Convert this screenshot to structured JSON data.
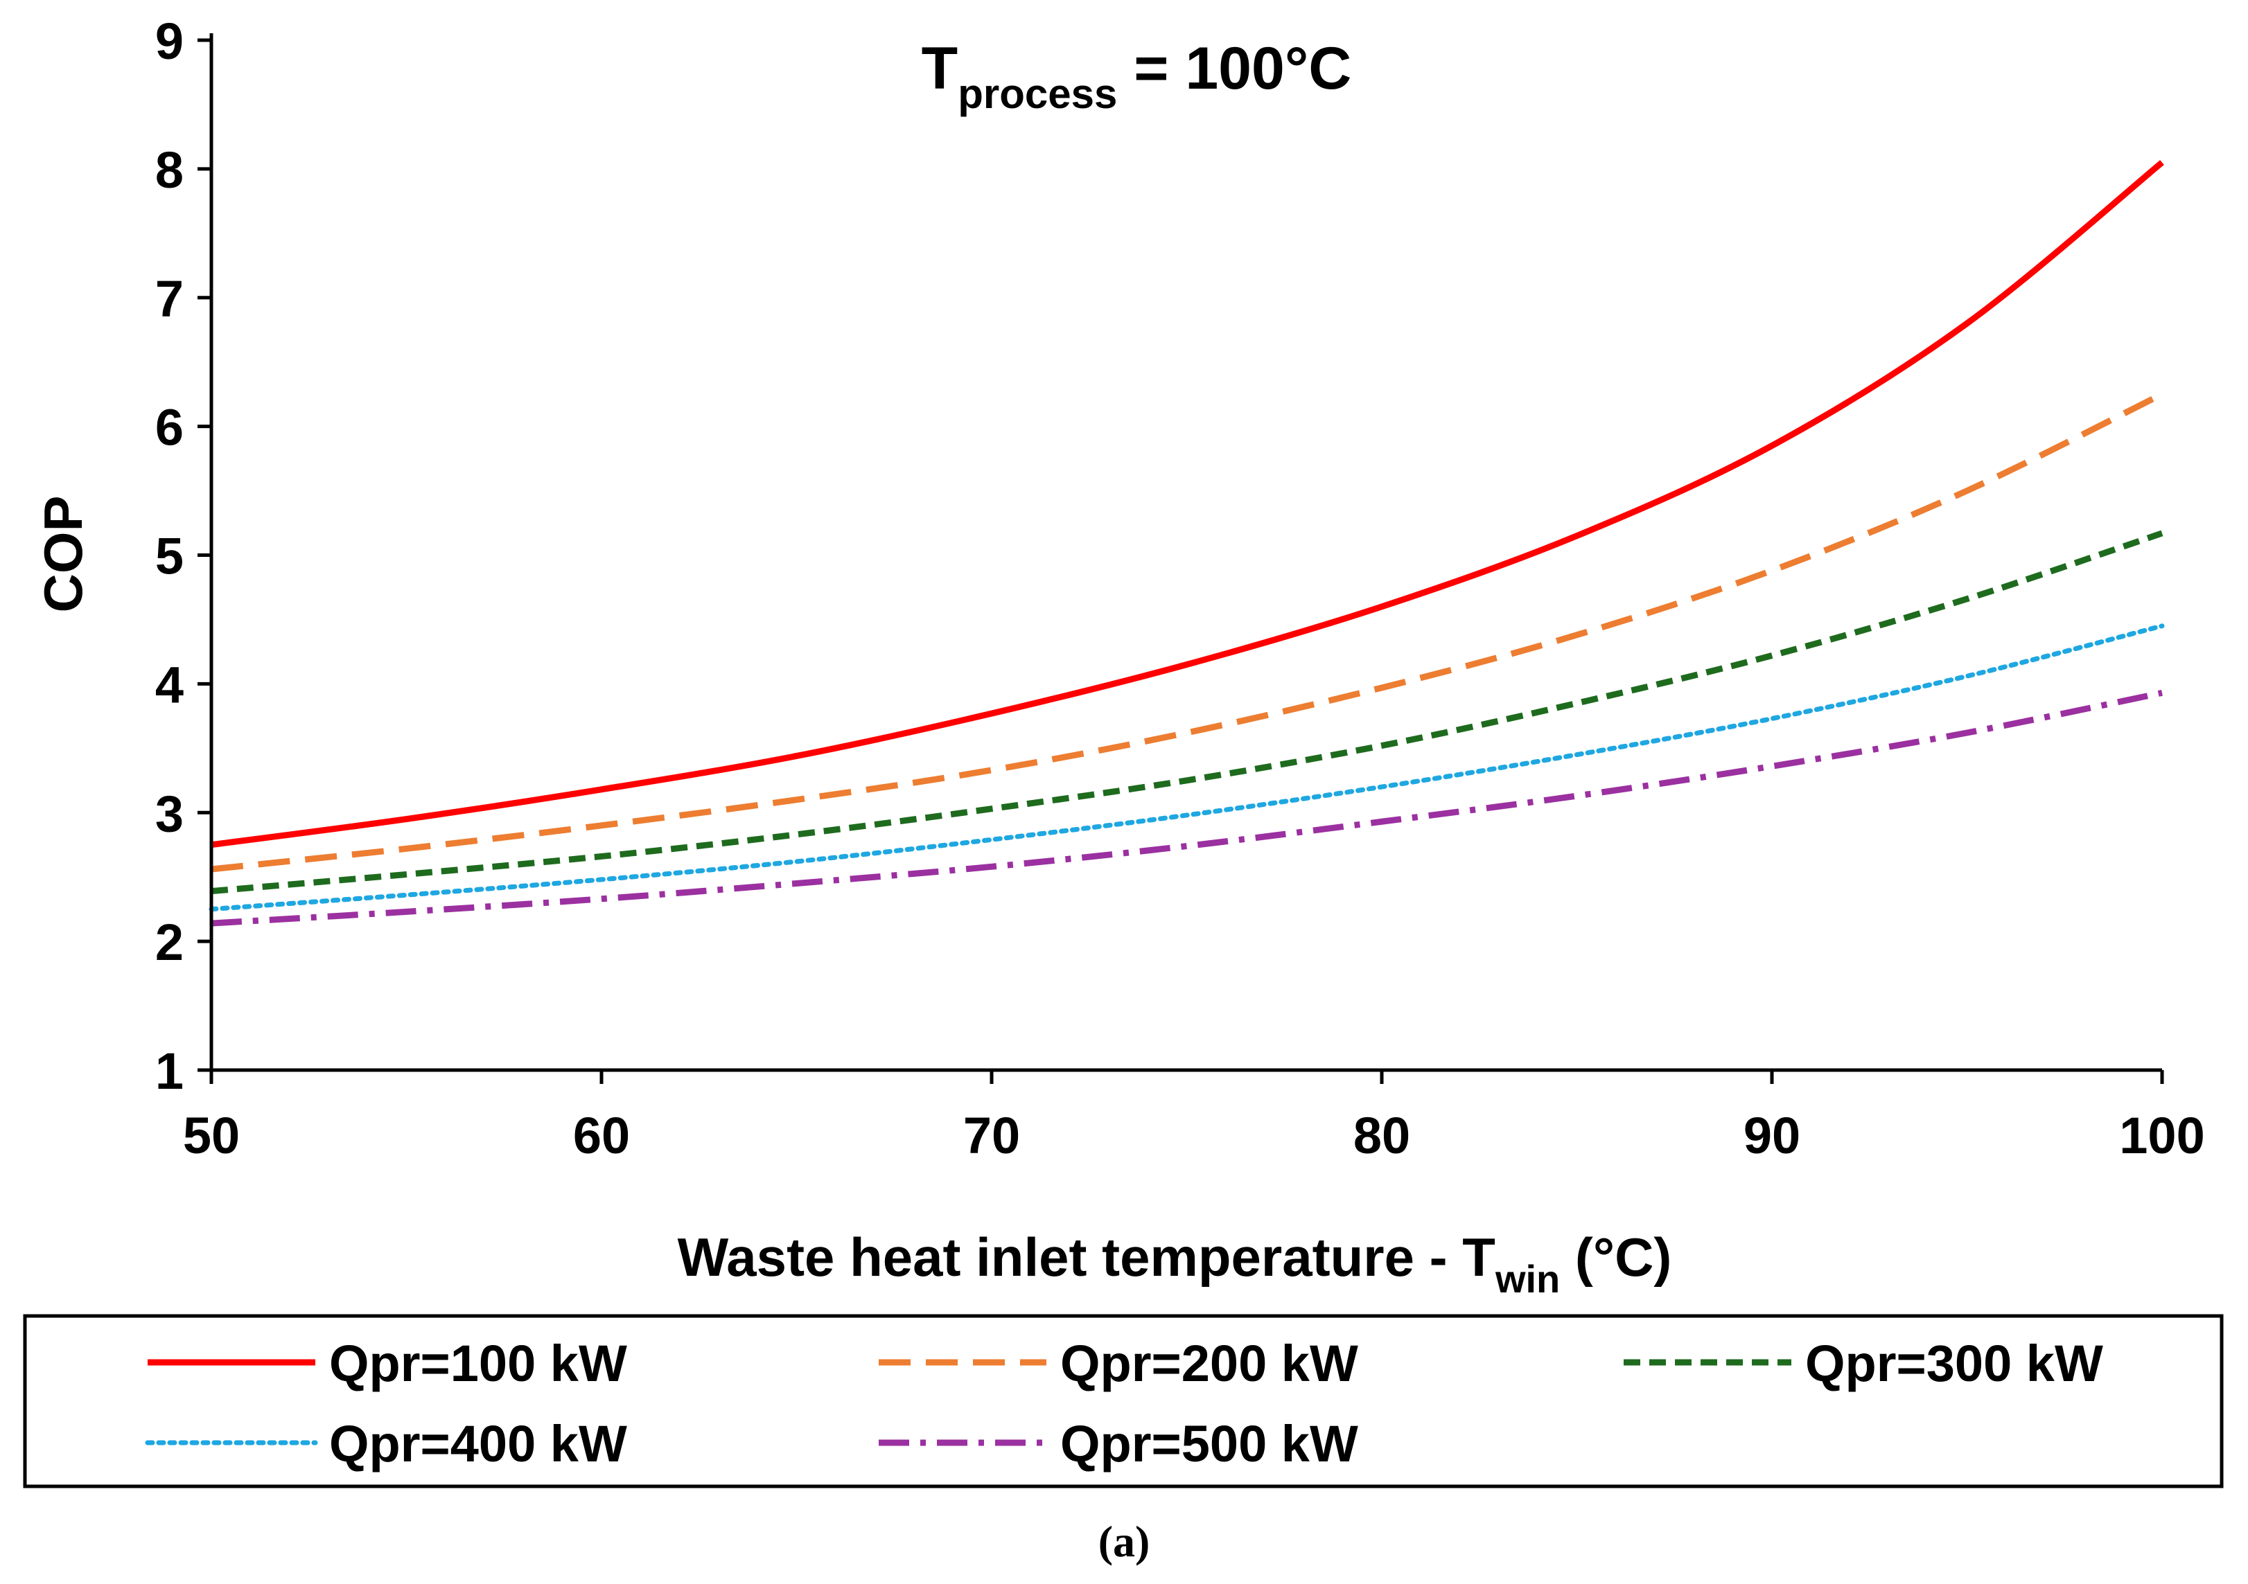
{
  "chart_data": {
    "type": "line",
    "title_main": "T",
    "title_sub": "process",
    "title_rest": " = 100°C",
    "xlabel_main": "Waste heat inlet temperature - T",
    "xlabel_sub": "win",
    "xlabel_rest": " (°C)",
    "ylabel": "COP",
    "xlim": [
      50,
      100
    ],
    "ylim": [
      1,
      9
    ],
    "xticks": [
      "50",
      "60",
      "70",
      "80",
      "90",
      "100"
    ],
    "yticks": [
      "1",
      "2",
      "3",
      "4",
      "5",
      "6",
      "7",
      "8",
      "9"
    ],
    "x": [
      50,
      55,
      60,
      65,
      70,
      75,
      80,
      85,
      90,
      95,
      100
    ],
    "series": [
      {
        "name": "Qpr=100 kW",
        "color": "#ff0000",
        "dash": "solid",
        "values": [
          2.75,
          2.95,
          3.18,
          3.44,
          3.77,
          4.15,
          4.6,
          5.15,
          5.85,
          6.8,
          8.05
        ]
      },
      {
        "name": "Qpr=200 kW",
        "color": "#ed7d31",
        "dash": "long-dash",
        "values": [
          2.56,
          2.72,
          2.9,
          3.1,
          3.33,
          3.62,
          3.97,
          4.38,
          4.88,
          5.5,
          6.25
        ]
      },
      {
        "name": "Qpr=300 kW",
        "color": "#1e6b1e",
        "dash": "dash",
        "values": [
          2.39,
          2.52,
          2.66,
          2.83,
          3.03,
          3.25,
          3.52,
          3.85,
          4.22,
          4.66,
          5.17
        ]
      },
      {
        "name": "Qpr=400 kW",
        "color": "#1ea7e1",
        "dash": "dot",
        "values": [
          2.25,
          2.36,
          2.48,
          2.62,
          2.79,
          2.98,
          3.2,
          3.45,
          3.73,
          4.06,
          4.45
        ]
      },
      {
        "name": "Qpr=500 kW",
        "color": "#9b30a0",
        "dash": "dash-dot",
        "values": [
          2.14,
          2.23,
          2.33,
          2.45,
          2.58,
          2.74,
          2.93,
          3.13,
          3.36,
          3.62,
          3.93
        ]
      }
    ],
    "legend_position": "bottom"
  },
  "caption": "(a)"
}
